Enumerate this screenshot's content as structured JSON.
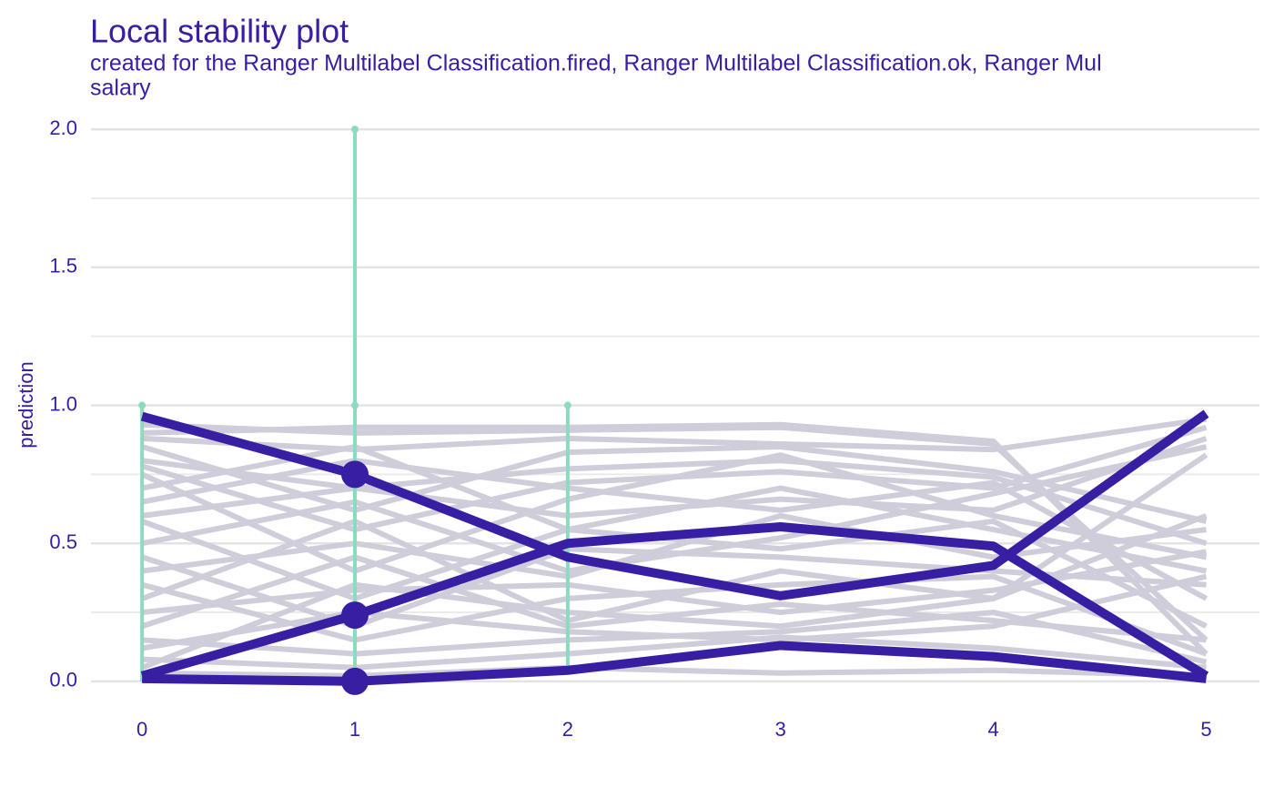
{
  "chart_data": {
    "type": "line",
    "title": "Local stability plot",
    "subtitle": "created for the Ranger Multilabel Classification.fired, Ranger Multilabel Classification.ok, Ranger Mul",
    "variable": "salary",
    "y_label": "prediction",
    "x": [
      0,
      1,
      2,
      3,
      4,
      5
    ],
    "xlim": [
      -0.24,
      5.25
    ],
    "xticks": [
      0,
      1,
      2,
      3,
      4,
      5
    ],
    "ylim": [
      -0.086,
      2.04
    ],
    "yticks": [
      {
        "value": 0,
        "label": "0.0"
      },
      {
        "value": 0.5,
        "label": "0.5"
      },
      {
        "value": 1,
        "label": "1.0"
      },
      {
        "value": 1.5,
        "label": "1.5"
      },
      {
        "value": 2,
        "label": "2.0"
      }
    ],
    "minor_yticks": [
      0.25,
      0.75,
      1.25,
      1.75
    ],
    "grid": true,
    "observation_x": 1,
    "series": [
      {
        "color": "#371ea3",
        "values": [
          0.96,
          0.75,
          0.45,
          0.31,
          0.42,
          0.97
        ]
      },
      {
        "color": "#371ea3",
        "values": [
          0.02,
          0.24,
          0.5,
          0.56,
          0.49,
          0.02
        ]
      },
      {
        "color": "#371ea3",
        "values": [
          0.01,
          0.0,
          0.04,
          0.13,
          0.09,
          0.01
        ]
      }
    ],
    "profile_color": "#cecdd9",
    "profiles": [
      [
        0.93,
        0.9,
        0.91,
        0.92,
        0.86,
        0.15
      ],
      [
        0.9,
        0.92,
        0.92,
        0.93,
        0.87,
        0.1
      ],
      [
        0.88,
        0.84,
        0.88,
        0.86,
        0.84,
        0.95
      ],
      [
        0.85,
        0.62,
        0.83,
        0.85,
        0.76,
        0.58
      ],
      [
        0.8,
        0.7,
        0.77,
        0.8,
        0.74,
        0.5
      ],
      [
        0.78,
        0.55,
        0.72,
        0.76,
        0.7,
        0.92
      ],
      [
        0.75,
        0.4,
        0.66,
        0.82,
        0.6,
        0.45
      ],
      [
        0.6,
        0.7,
        0.6,
        0.66,
        0.62,
        0.88
      ],
      [
        0.58,
        0.3,
        0.55,
        0.7,
        0.55,
        0.4
      ],
      [
        0.5,
        0.65,
        0.4,
        0.52,
        0.68,
        0.85
      ],
      [
        0.45,
        0.2,
        0.48,
        0.45,
        0.4,
        0.35
      ],
      [
        0.4,
        0.5,
        0.38,
        0.6,
        0.45,
        0.55
      ],
      [
        0.35,
        0.15,
        0.3,
        0.35,
        0.38,
        0.1
      ],
      [
        0.3,
        0.58,
        0.22,
        0.4,
        0.3,
        0.82
      ],
      [
        0.25,
        0.33,
        0.35,
        0.25,
        0.33,
        0.47
      ],
      [
        0.2,
        0.45,
        0.2,
        0.28,
        0.22,
        0.15
      ],
      [
        0.15,
        0.1,
        0.15,
        0.18,
        0.25,
        0.07
      ],
      [
        0.12,
        0.25,
        0.18,
        0.15,
        0.2,
        0.38
      ],
      [
        0.08,
        0.05,
        0.1,
        0.16,
        0.12,
        0.05
      ],
      [
        0.05,
        0.35,
        0.25,
        0.2,
        0.3,
        0.6
      ],
      [
        0.03,
        0.02,
        0.05,
        0.03,
        0.04,
        0.02
      ],
      [
        0.65,
        0.8,
        0.7,
        0.62,
        0.72,
        0.3
      ],
      [
        0.7,
        0.85,
        0.55,
        0.48,
        0.58,
        0.2
      ]
    ],
    "range_color": "#8bdcbe",
    "ranges": [
      {
        "x": 0,
        "low": 0.0,
        "high": 1.0
      },
      {
        "x": 1,
        "low": 0.0,
        "high": 2.0
      },
      {
        "x": 2,
        "low": 0.04,
        "high": 1.0
      }
    ],
    "range_points": [
      {
        "x": 0,
        "y": 1.0
      },
      {
        "x": 1,
        "y": 1.0
      },
      {
        "x": 1,
        "y": 2.0
      },
      {
        "x": 2,
        "y": 1.0
      }
    ]
  }
}
